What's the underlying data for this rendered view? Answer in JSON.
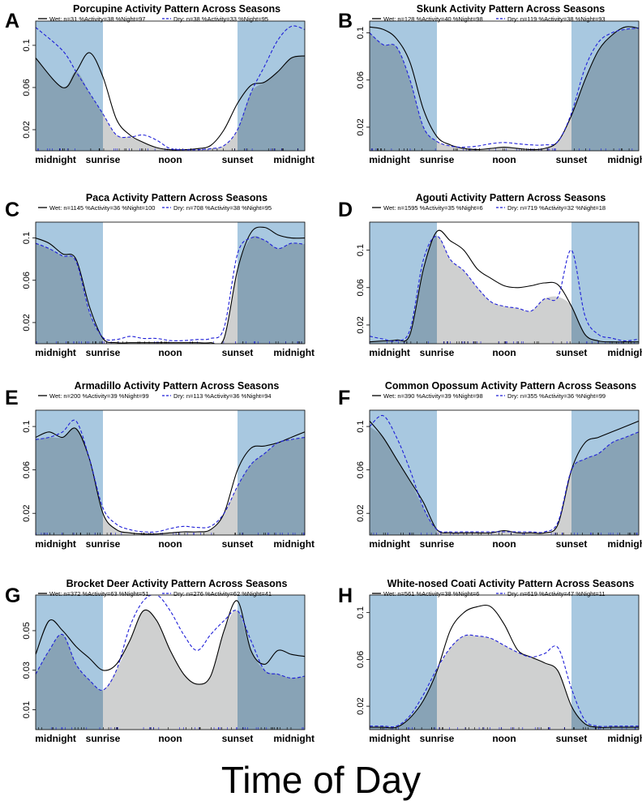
{
  "figure": {
    "xlabel": "Time of Day"
  },
  "colors": {
    "night": "#a8c8e0",
    "overlap": "#cfd0d0",
    "wet": "#000000",
    "dry": "#1f1fd8"
  },
  "chart_data": [
    {
      "letter": "A",
      "title": "Porcupine Activity Pattern Across Seasons",
      "legend_wet": "Wet: n=31 %Activity=38 %Night=97",
      "legend_dry": "Dry: n=38 %Activity=33 %Night=95",
      "type": "line",
      "xticks": [
        "midnight",
        "sunrise",
        "noon",
        "sunset",
        "midnight"
      ],
      "yticks": [
        "0.02",
        "0.06",
        "0.1"
      ],
      "ylim": [
        0,
        0.123
      ],
      "x": [
        0,
        0.1,
        0.15,
        0.2,
        0.25,
        0.3,
        0.35,
        0.4,
        0.45,
        0.5,
        0.55,
        0.6,
        0.65,
        0.7,
        0.75,
        0.8,
        0.85,
        0.9,
        0.95,
        1
      ],
      "series": [
        {
          "name": "Wet",
          "values": [
            0.088,
            0.06,
            0.075,
            0.093,
            0.07,
            0.03,
            0.015,
            0.008,
            0.003,
            0.001,
            0.001,
            0.002,
            0.005,
            0.02,
            0.045,
            0.062,
            0.065,
            0.075,
            0.088,
            0.09
          ]
        },
        {
          "name": "Dry",
          "values": [
            0.117,
            0.095,
            0.075,
            0.055,
            0.035,
            0.015,
            0.013,
            0.015,
            0.01,
            0.002,
            0.001,
            0.001,
            0.002,
            0.005,
            0.02,
            0.055,
            0.08,
            0.105,
            0.118,
            0.115
          ]
        }
      ]
    },
    {
      "letter": "B",
      "title": "Skunk Activity Pattern Across Seasons",
      "legend_wet": "Wet: n=128 %Activity=40 %Night=98",
      "legend_dry": "Dry: n=119 %Activity=38 %Night=93",
      "type": "line",
      "xticks": [
        "midnight",
        "sunrise",
        "noon",
        "sunset",
        "midnight"
      ],
      "yticks": [
        "0.02",
        "0.06",
        "0.1"
      ],
      "ylim": [
        0,
        0.11
      ],
      "x": [
        0,
        0.05,
        0.1,
        0.15,
        0.2,
        0.25,
        0.3,
        0.35,
        0.4,
        0.45,
        0.5,
        0.55,
        0.6,
        0.65,
        0.7,
        0.75,
        0.8,
        0.85,
        0.9,
        0.95,
        1
      ],
      "series": [
        {
          "name": "Wet",
          "values": [
            0.105,
            0.103,
            0.095,
            0.075,
            0.035,
            0.012,
            0.005,
            0.002,
            0.001,
            0.002,
            0.003,
            0.002,
            0.001,
            0.002,
            0.008,
            0.03,
            0.06,
            0.085,
            0.098,
            0.105,
            0.104
          ]
        },
        {
          "name": "Dry",
          "values": [
            0.1,
            0.09,
            0.088,
            0.06,
            0.02,
            0.008,
            0.004,
            0.003,
            0.004,
            0.006,
            0.007,
            0.006,
            0.005,
            0.005,
            0.008,
            0.032,
            0.07,
            0.092,
            0.1,
            0.103,
            0.104
          ]
        }
      ]
    },
    {
      "letter": "C",
      "title": "Paca Activity Pattern Across Seasons",
      "legend_wet": "Wet: n=1145 %Activity=36 %Night=100",
      "legend_dry": "Dry: n=708 %Activity=38 %Night=95",
      "type": "line",
      "xticks": [
        "midnight",
        "sunrise",
        "noon",
        "sunset",
        "midnight"
      ],
      "yticks": [
        "0.02",
        "0.06",
        "0.1"
      ],
      "ylim": [
        0,
        0.115
      ],
      "x": [
        0,
        0.05,
        0.1,
        0.15,
        0.2,
        0.25,
        0.3,
        0.35,
        0.4,
        0.45,
        0.5,
        0.55,
        0.6,
        0.65,
        0.7,
        0.75,
        0.8,
        0.85,
        0.9,
        0.95,
        1
      ],
      "series": [
        {
          "name": "Wet",
          "values": [
            0.1,
            0.095,
            0.085,
            0.08,
            0.035,
            0.005,
            0.001,
            0.001,
            0.001,
            0.001,
            0.001,
            0.001,
            0.001,
            0.001,
            0.005,
            0.07,
            0.105,
            0.11,
            0.103,
            0.1,
            0.1
          ]
        },
        {
          "name": "Dry",
          "values": [
            0.095,
            0.09,
            0.083,
            0.078,
            0.03,
            0.006,
            0.004,
            0.007,
            0.005,
            0.005,
            0.003,
            0.003,
            0.004,
            0.005,
            0.015,
            0.085,
            0.1,
            0.098,
            0.09,
            0.095,
            0.094
          ]
        }
      ]
    },
    {
      "letter": "D",
      "title": "Agouti Activity Pattern Across Seasons",
      "legend_wet": "Wet: n=1595 %Activity=35 %Night=6",
      "legend_dry": "Dry: n=719 %Activity=32 %Night=18",
      "type": "line",
      "xticks": [
        "midnight",
        "sunrise",
        "noon",
        "sunset",
        "midnight"
      ],
      "yticks": [
        "0.02",
        "0.06",
        "0.1"
      ],
      "ylim": [
        0,
        0.13
      ],
      "x": [
        0,
        0.05,
        0.1,
        0.15,
        0.2,
        0.25,
        0.3,
        0.35,
        0.4,
        0.45,
        0.5,
        0.55,
        0.6,
        0.65,
        0.7,
        0.75,
        0.8,
        0.85,
        0.9,
        0.95,
        1
      ],
      "series": [
        {
          "name": "Wet",
          "values": [
            0.002,
            0.003,
            0.004,
            0.01,
            0.08,
            0.12,
            0.11,
            0.1,
            0.08,
            0.07,
            0.062,
            0.06,
            0.062,
            0.065,
            0.063,
            0.04,
            0.01,
            0.003,
            0.002,
            0.002,
            0.002
          ]
        },
        {
          "name": "Dry",
          "values": [
            0.008,
            0.005,
            0.003,
            0.015,
            0.09,
            0.115,
            0.09,
            0.078,
            0.06,
            0.045,
            0.04,
            0.038,
            0.035,
            0.048,
            0.05,
            0.1,
            0.03,
            0.01,
            0.006,
            0.003,
            0.005
          ]
        }
      ]
    },
    {
      "letter": "E",
      "title": "Armadillo Activity Pattern Across Seasons",
      "legend_wet": "Wet: n=200 %Activity=39 %Night=99",
      "legend_dry": "Dry: n=113 %Activity=36 %Night=94",
      "type": "line",
      "xticks": [
        "midnight",
        "sunrise",
        "noon",
        "sunset",
        "midnight"
      ],
      "yticks": [
        "0.02",
        "0.06",
        "0.1"
      ],
      "ylim": [
        0,
        0.115
      ],
      "x": [
        0,
        0.05,
        0.1,
        0.15,
        0.2,
        0.25,
        0.3,
        0.35,
        0.4,
        0.45,
        0.5,
        0.55,
        0.6,
        0.65,
        0.7,
        0.75,
        0.8,
        0.85,
        0.9,
        0.95,
        1
      ],
      "series": [
        {
          "name": "Wet",
          "values": [
            0.09,
            0.095,
            0.09,
            0.098,
            0.07,
            0.02,
            0.005,
            0.002,
            0.001,
            0.001,
            0.002,
            0.003,
            0.003,
            0.005,
            0.02,
            0.06,
            0.08,
            0.082,
            0.085,
            0.09,
            0.095
          ]
        },
        {
          "name": "Dry",
          "values": [
            0.088,
            0.09,
            0.095,
            0.105,
            0.07,
            0.025,
            0.01,
            0.005,
            0.003,
            0.003,
            0.006,
            0.008,
            0.007,
            0.008,
            0.02,
            0.045,
            0.065,
            0.075,
            0.085,
            0.088,
            0.09
          ]
        }
      ]
    },
    {
      "letter": "F",
      "title": "Common Opossum Activity Pattern Across Seasons",
      "legend_wet": "Wet: n=390 %Activity=39 %Night=98",
      "legend_dry": "Dry: n=355 %Activity=36 %Night=99",
      "type": "line",
      "xticks": [
        "midnight",
        "sunrise",
        "noon",
        "sunset",
        "midnight"
      ],
      "yticks": [
        "0.02",
        "0.06",
        "0.1"
      ],
      "ylim": [
        0,
        0.115
      ],
      "x": [
        0,
        0.05,
        0.1,
        0.15,
        0.2,
        0.25,
        0.3,
        0.35,
        0.4,
        0.45,
        0.5,
        0.55,
        0.6,
        0.65,
        0.7,
        0.75,
        0.8,
        0.85,
        0.9,
        0.95,
        1
      ],
      "series": [
        {
          "name": "Wet",
          "values": [
            0.105,
            0.09,
            0.07,
            0.05,
            0.03,
            0.005,
            0.002,
            0.002,
            0.002,
            0.002,
            0.004,
            0.002,
            0.002,
            0.002,
            0.01,
            0.06,
            0.085,
            0.09,
            0.095,
            0.1,
            0.105
          ]
        },
        {
          "name": "Dry",
          "values": [
            0.1,
            0.11,
            0.09,
            0.06,
            0.025,
            0.005,
            0.003,
            0.003,
            0.003,
            0.003,
            0.003,
            0.003,
            0.003,
            0.003,
            0.012,
            0.06,
            0.07,
            0.075,
            0.085,
            0.09,
            0.095
          ]
        }
      ]
    },
    {
      "letter": "G",
      "title": "Brocket Deer Activity Pattern Across Seasons",
      "legend_wet": "Wet: n=372 %Activity=63 %Night=51",
      "legend_dry": "Dry: n=276 %Activity=62 %Night=41",
      "type": "line",
      "xticks": [
        "midnight",
        "sunrise",
        "noon",
        "sunset",
        "midnight"
      ],
      "yticks": [
        "0.01",
        "0.03",
        "0.05"
      ],
      "ylim": [
        0,
        0.068
      ],
      "x": [
        0,
        0.05,
        0.1,
        0.15,
        0.2,
        0.25,
        0.3,
        0.35,
        0.4,
        0.45,
        0.5,
        0.55,
        0.6,
        0.65,
        0.7,
        0.75,
        0.8,
        0.85,
        0.9,
        0.95,
        1
      ],
      "series": [
        {
          "name": "Wet",
          "values": [
            0.038,
            0.055,
            0.05,
            0.042,
            0.036,
            0.03,
            0.033,
            0.045,
            0.06,
            0.055,
            0.04,
            0.028,
            0.023,
            0.027,
            0.05,
            0.065,
            0.04,
            0.033,
            0.04,
            0.038,
            0.037
          ]
        },
        {
          "name": "Dry",
          "values": [
            0.028,
            0.04,
            0.048,
            0.033,
            0.025,
            0.02,
            0.03,
            0.052,
            0.065,
            0.068,
            0.06,
            0.048,
            0.04,
            0.048,
            0.055,
            0.06,
            0.045,
            0.03,
            0.028,
            0.026,
            0.027
          ]
        }
      ]
    },
    {
      "letter": "H",
      "title": "White-nosed Coati Activity Pattern Across Seasons",
      "legend_wet": "Wet: n=561 %Activity=38 %Night=6",
      "legend_dry": "Dry: n=619 %Activity=47 %Night=11",
      "type": "line",
      "xticks": [
        "midnight",
        "sunrise",
        "noon",
        "sunset",
        "midnight"
      ],
      "yticks": [
        "0.02",
        "0.06",
        "0.1"
      ],
      "ylim": [
        0,
        0.115
      ],
      "x": [
        0,
        0.05,
        0.1,
        0.15,
        0.2,
        0.25,
        0.3,
        0.35,
        0.4,
        0.45,
        0.5,
        0.55,
        0.6,
        0.65,
        0.7,
        0.75,
        0.8,
        0.85,
        0.9,
        0.95,
        1
      ],
      "series": [
        {
          "name": "Wet",
          "values": [
            0.002,
            0.002,
            0.002,
            0.01,
            0.025,
            0.05,
            0.085,
            0.1,
            0.105,
            0.105,
            0.09,
            0.068,
            0.062,
            0.057,
            0.05,
            0.02,
            0.005,
            0.002,
            0.002,
            0.002,
            0.002
          ]
        },
        {
          "name": "Dry",
          "values": [
            0.003,
            0.003,
            0.003,
            0.012,
            0.03,
            0.052,
            0.07,
            0.08,
            0.08,
            0.078,
            0.072,
            0.066,
            0.062,
            0.065,
            0.07,
            0.035,
            0.008,
            0.003,
            0.003,
            0.003,
            0.003
          ]
        }
      ]
    }
  ]
}
